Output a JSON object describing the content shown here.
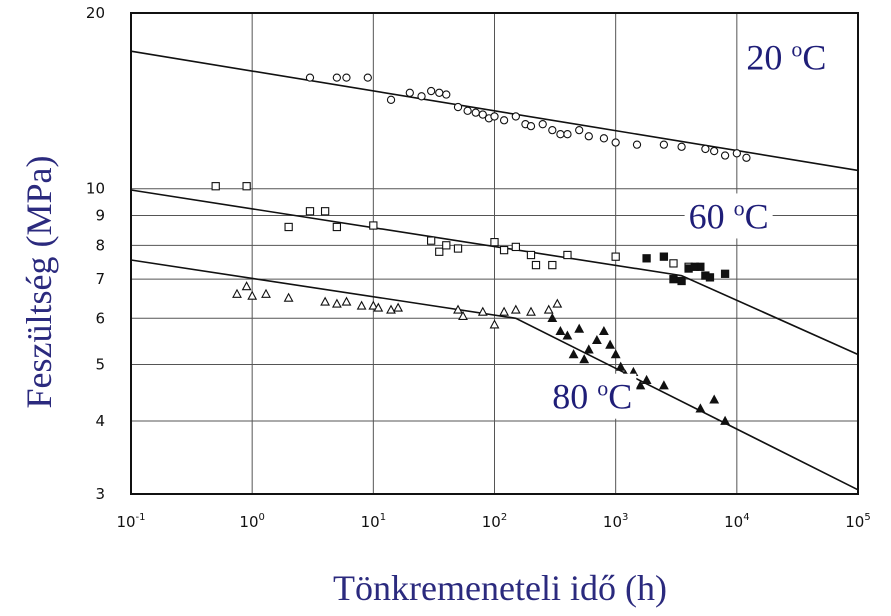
{
  "chart_data": {
    "type": "scatter",
    "x_scale": "log",
    "y_scale": "log",
    "xlim": [
      0.1,
      100000
    ],
    "ylim": [
      3,
      20
    ],
    "xlabel": "Tönkremeneteli idő (h)",
    "ylabel": "Feszültség (MPa)",
    "grid": true,
    "x_ticks": [
      {
        "base": "10",
        "exp": "-1",
        "value": 0.1
      },
      {
        "base": "10",
        "exp": "0",
        "value": 1
      },
      {
        "base": "10",
        "exp": "1",
        "value": 10
      },
      {
        "base": "10",
        "exp": "2",
        "value": 100
      },
      {
        "base": "10",
        "exp": "3",
        "value": 1000
      },
      {
        "base": "10",
        "exp": "4",
        "value": 10000
      },
      {
        "base": "10",
        "exp": "5",
        "value": 100000
      }
    ],
    "y_ticks": [
      {
        "label": "3",
        "value": 3
      },
      {
        "label": "4",
        "value": 4
      },
      {
        "label": "5",
        "value": 5
      },
      {
        "label": "6",
        "value": 6
      },
      {
        "label": "7",
        "value": 7
      },
      {
        "label": "8",
        "value": 8
      },
      {
        "label": "9",
        "value": 9
      },
      {
        "label": "10",
        "value": 10
      },
      {
        "label": "20",
        "value": 20
      }
    ],
    "series": [
      {
        "temperature": "20",
        "unit_sup": "o",
        "unit": "C",
        "marker": "circle-open",
        "curve": [
          [
            0.1,
            17.2
          ],
          [
            100000,
            10.75
          ]
        ],
        "label_at": [
          12000,
          16.0
        ],
        "points": [
          [
            3,
            15.5
          ],
          [
            5,
            15.5
          ],
          [
            6,
            15.5
          ],
          [
            9,
            15.5
          ],
          [
            14,
            14.2
          ],
          [
            20,
            14.6
          ],
          [
            25,
            14.4
          ],
          [
            30,
            14.7
          ],
          [
            35,
            14.6
          ],
          [
            40,
            14.5
          ],
          [
            50,
            13.8
          ],
          [
            60,
            13.6
          ],
          [
            70,
            13.5
          ],
          [
            80,
            13.4
          ],
          [
            90,
            13.2
          ],
          [
            100,
            13.3
          ],
          [
            120,
            13.1
          ],
          [
            150,
            13.3
          ],
          [
            180,
            12.9
          ],
          [
            200,
            12.8
          ],
          [
            250,
            12.9
          ],
          [
            300,
            12.6
          ],
          [
            350,
            12.4
          ],
          [
            400,
            12.4
          ],
          [
            500,
            12.6
          ],
          [
            600,
            12.3
          ],
          [
            800,
            12.2
          ],
          [
            1000,
            12.0
          ],
          [
            1500,
            11.9
          ],
          [
            2500,
            11.9
          ],
          [
            3500,
            11.8
          ],
          [
            5500,
            11.7
          ],
          [
            6500,
            11.6
          ],
          [
            8000,
            11.4
          ],
          [
            10000,
            11.5
          ],
          [
            12000,
            11.3
          ]
        ]
      },
      {
        "temperature": "60",
        "unit_sup": "o",
        "unit": "C",
        "marker": "square-open",
        "curve": [
          [
            0.1,
            9.95
          ],
          [
            3500,
            7.1
          ],
          [
            100000,
            5.2
          ]
        ],
        "label_at": [
          4000,
          8.55
        ],
        "points": [
          [
            0.5,
            10.1
          ],
          [
            0.9,
            10.1
          ],
          [
            2,
            8.6
          ],
          [
            3,
            9.15
          ],
          [
            4,
            9.15
          ],
          [
            5,
            8.6
          ],
          [
            10,
            8.65
          ],
          [
            30,
            8.15
          ],
          [
            35,
            7.8
          ],
          [
            40,
            8.0
          ],
          [
            50,
            7.9
          ],
          [
            100,
            8.1
          ],
          [
            120,
            7.85
          ],
          [
            150,
            7.95
          ],
          [
            200,
            7.7
          ],
          [
            220,
            7.4
          ],
          [
            300,
            7.4
          ],
          [
            400,
            7.7
          ],
          [
            1000,
            7.65
          ],
          [
            3000,
            7.45
          ],
          [
            4000,
            7.35
          ]
        ],
        "filled_points": [
          [
            1800,
            7.6
          ],
          [
            2500,
            7.65
          ],
          [
            3000,
            7.0
          ],
          [
            3500,
            6.95
          ],
          [
            4000,
            7.3
          ],
          [
            4500,
            7.35
          ],
          [
            5000,
            7.35
          ],
          [
            5500,
            7.1
          ],
          [
            6000,
            7.05
          ],
          [
            8000,
            7.15
          ]
        ]
      },
      {
        "temperature": "80",
        "unit_sup": "o",
        "unit": "C",
        "marker": "triangle-open",
        "curve": [
          [
            0.1,
            7.55
          ],
          [
            150,
            6.0
          ],
          [
            100000,
            3.05
          ]
        ],
        "label_at": [
          300,
          4.2
        ],
        "points": [
          [
            0.75,
            6.6
          ],
          [
            0.9,
            6.8
          ],
          [
            1.0,
            6.55
          ],
          [
            1.3,
            6.6
          ],
          [
            2,
            6.5
          ],
          [
            4,
            6.4
          ],
          [
            5,
            6.35
          ],
          [
            6,
            6.4
          ],
          [
            8,
            6.3
          ],
          [
            10,
            6.3
          ],
          [
            11,
            6.25
          ],
          [
            14,
            6.2
          ],
          [
            16,
            6.25
          ],
          [
            50,
            6.2
          ],
          [
            55,
            6.05
          ],
          [
            80,
            6.15
          ],
          [
            100,
            5.85
          ],
          [
            120,
            6.15
          ],
          [
            150,
            6.2
          ],
          [
            200,
            6.15
          ],
          [
            280,
            6.2
          ],
          [
            330,
            6.35
          ]
        ],
        "filled_points": [
          [
            300,
            6.0
          ],
          [
            350,
            5.7
          ],
          [
            400,
            5.6
          ],
          [
            450,
            5.2
          ],
          [
            500,
            5.75
          ],
          [
            550,
            5.1
          ],
          [
            600,
            5.3
          ],
          [
            700,
            5.5
          ],
          [
            800,
            5.7
          ],
          [
            900,
            5.4
          ],
          [
            1000,
            5.2
          ],
          [
            1100,
            4.95
          ],
          [
            1200,
            4.8
          ],
          [
            1400,
            4.85
          ],
          [
            1600,
            4.6
          ],
          [
            1800,
            4.7
          ],
          [
            2500,
            4.6
          ],
          [
            5000,
            4.2
          ],
          [
            6500,
            4.35
          ],
          [
            8000,
            4.0
          ]
        ]
      }
    ]
  }
}
